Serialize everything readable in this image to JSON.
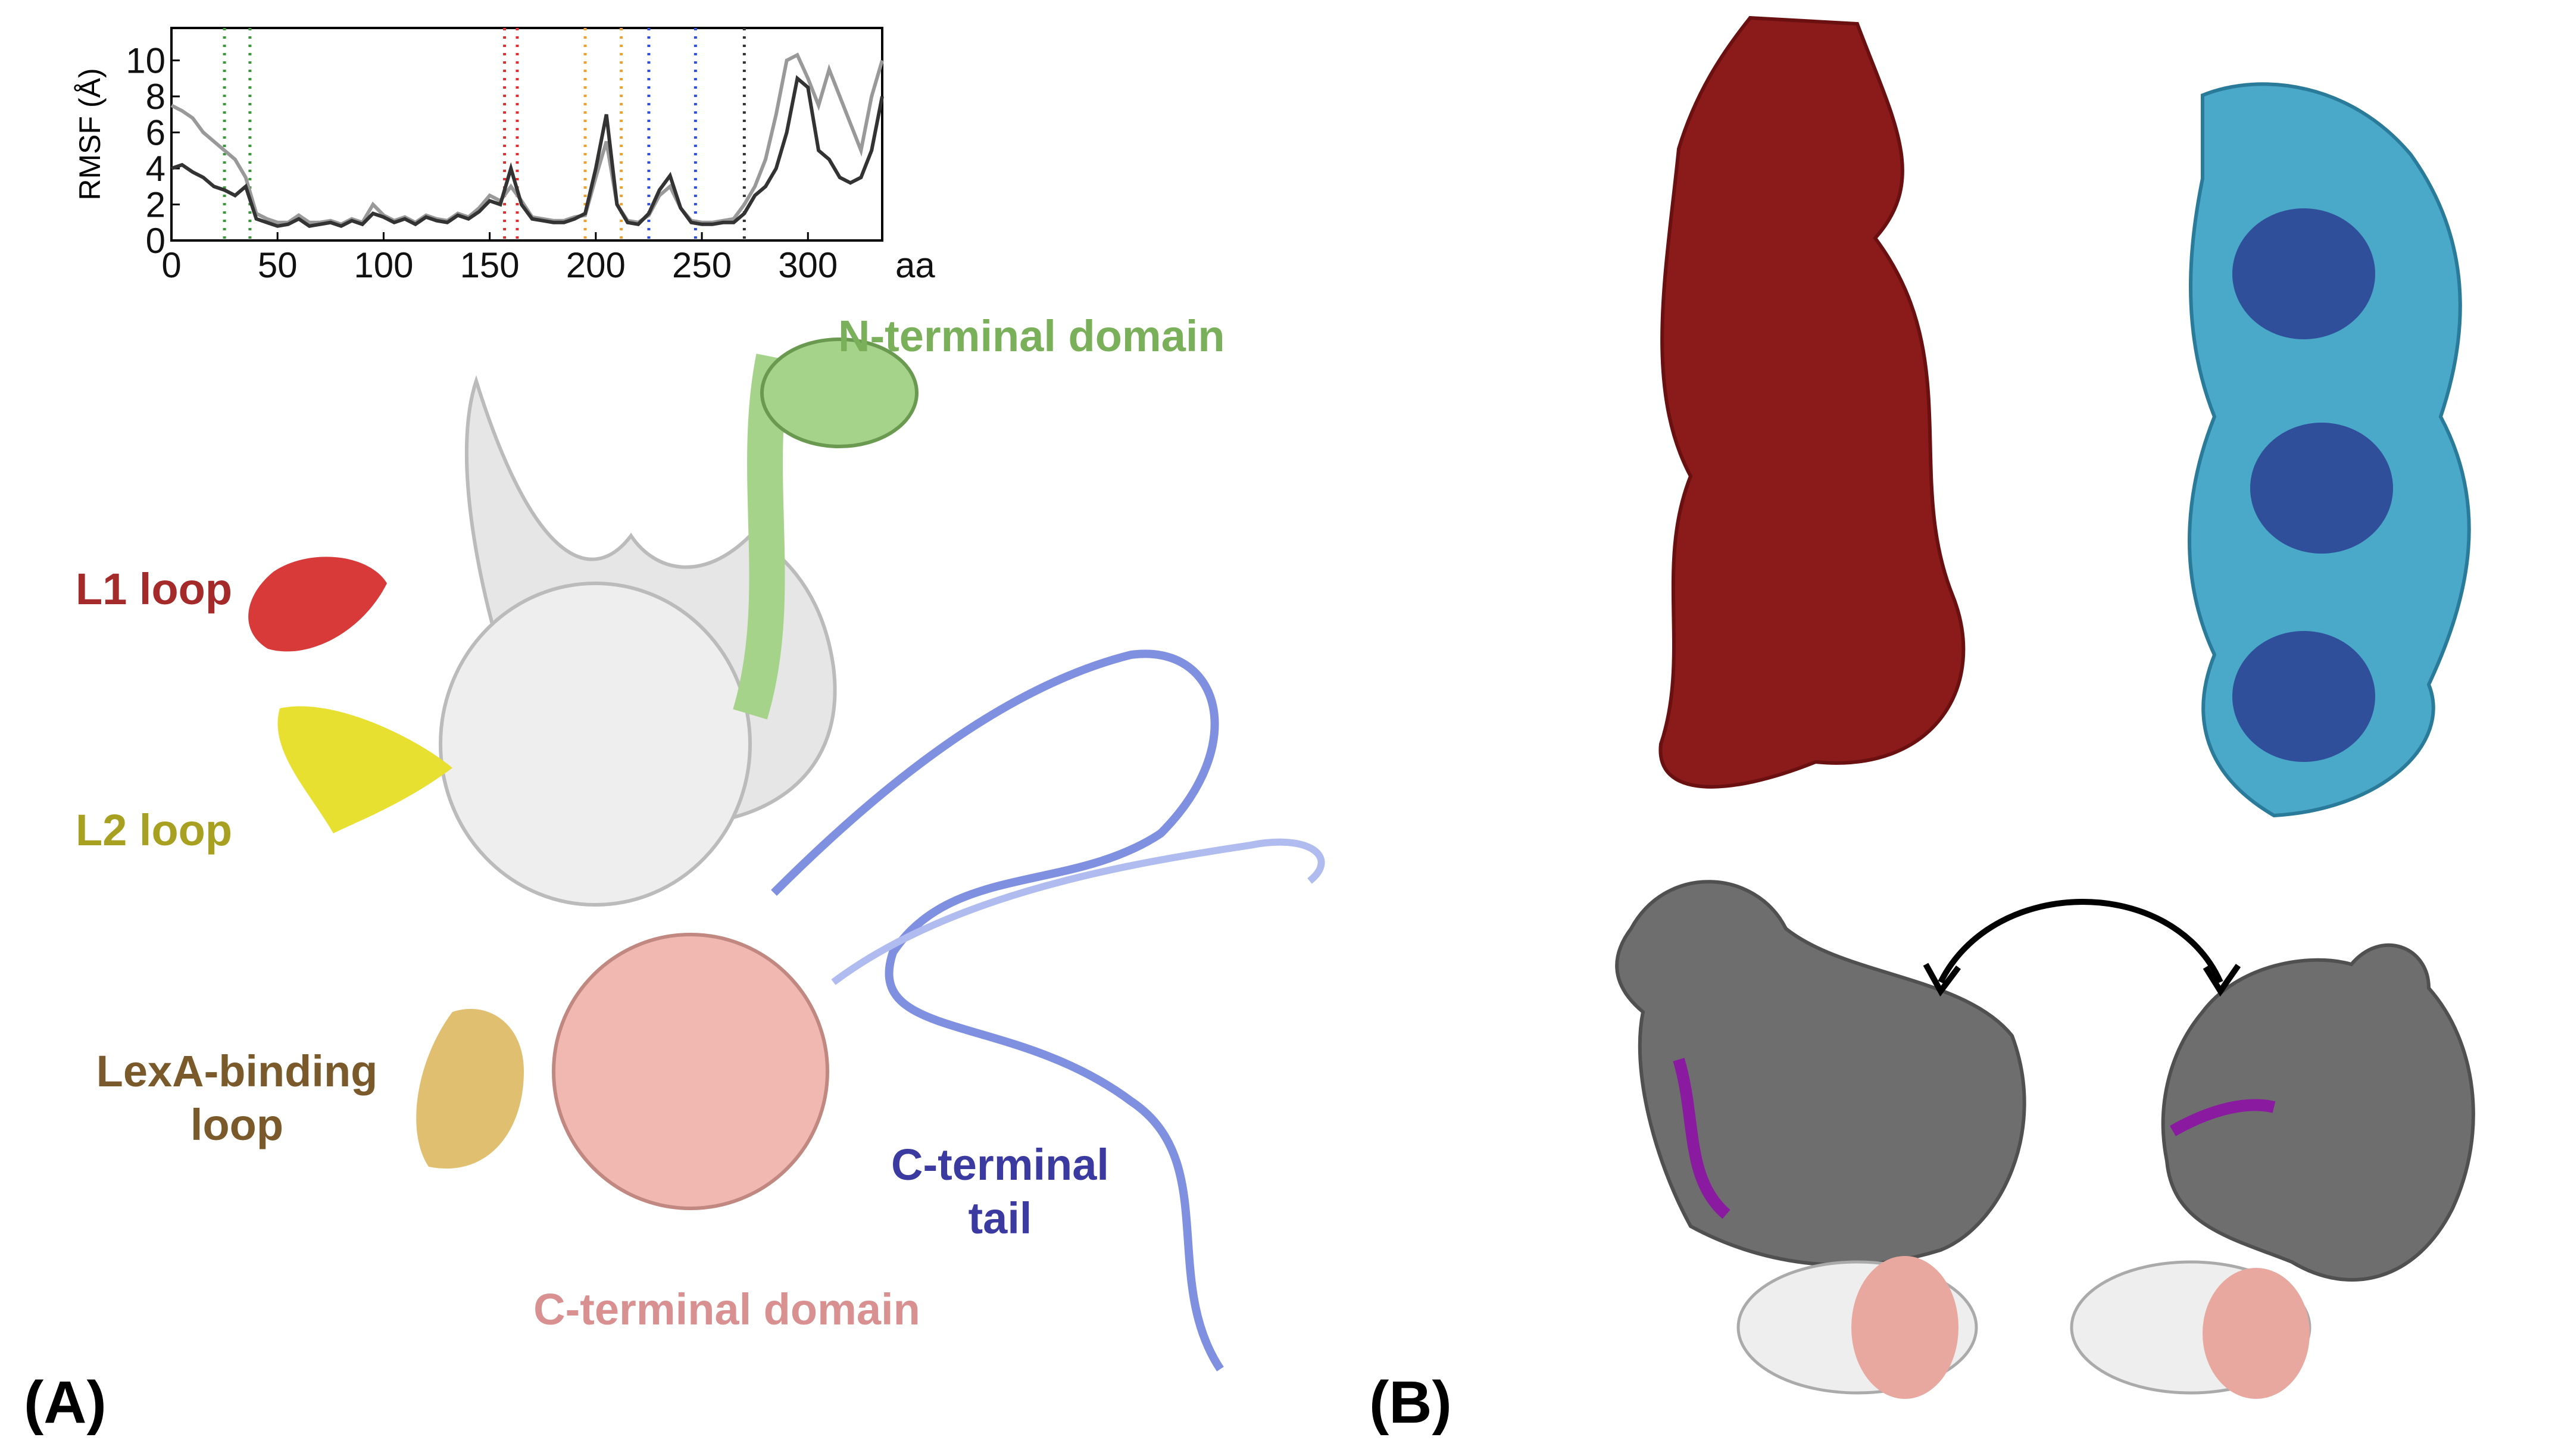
{
  "chart_data": {
    "type": "line",
    "ylabel": "RMSF (Å)",
    "xlabel": "aa",
    "xlim": [
      0,
      335
    ],
    "ylim": [
      0,
      11.8
    ],
    "xticks": [
      0,
      50,
      100,
      150,
      200,
      250,
      300
    ],
    "yticks": [
      0,
      2,
      4,
      6,
      8,
      10
    ],
    "x": [
      0,
      5,
      10,
      15,
      20,
      25,
      30,
      35,
      40,
      45,
      50,
      55,
      60,
      65,
      70,
      75,
      80,
      85,
      90,
      95,
      100,
      105,
      110,
      115,
      120,
      125,
      130,
      135,
      140,
      145,
      150,
      155,
      160,
      165,
      170,
      175,
      180,
      185,
      190,
      195,
      200,
      205,
      210,
      215,
      220,
      225,
      230,
      235,
      240,
      245,
      250,
      255,
      260,
      265,
      270,
      275,
      280,
      285,
      290,
      295,
      300,
      305,
      310,
      315,
      320,
      325,
      330,
      335
    ],
    "series": [
      {
        "color": "#999999",
        "values": [
          7.5,
          7.2,
          6.8,
          6,
          5.5,
          5,
          4.5,
          3.5,
          1.5,
          1.2,
          1,
          1,
          1.4,
          1,
          1,
          1.1,
          0.9,
          1.2,
          1,
          2,
          1.4,
          1.1,
          1.3,
          1,
          1.4,
          1.2,
          1.1,
          1.5,
          1.3,
          1.8,
          2.5,
          2.2,
          3,
          2.2,
          1.3,
          1.2,
          1.1,
          1.1,
          1.3,
          1.4,
          3.5,
          5.5,
          2,
          1.1,
          1,
          1.4,
          2.5,
          3,
          1.8,
          1.1,
          1,
          1,
          1.1,
          1.2,
          2,
          3,
          4.5,
          7,
          10,
          10.3,
          9,
          7.5,
          9.5,
          8,
          6.5,
          5,
          8,
          10
        ]
      },
      {
        "color": "#333333",
        "values": [
          4,
          4.2,
          3.8,
          3.5,
          3,
          2.8,
          2.5,
          3,
          1.2,
          1,
          0.8,
          0.9,
          1.2,
          0.8,
          0.9,
          1,
          0.8,
          1.1,
          0.9,
          1.5,
          1.3,
          1,
          1.2,
          0.9,
          1.3,
          1.1,
          1,
          1.4,
          1.2,
          1.6,
          2.2,
          2,
          4,
          2,
          1.2,
          1.1,
          1,
          1,
          1.2,
          1.5,
          4,
          7,
          2,
          1,
          0.9,
          1.5,
          2.8,
          3.6,
          1.8,
          1,
          0.9,
          0.9,
          1,
          1,
          1.5,
          2.5,
          3,
          4,
          6,
          9,
          8.5,
          5,
          4.5,
          3.5,
          3.2,
          3.5,
          5,
          8
        ]
      }
    ],
    "vlines": [
      {
        "x": 25,
        "color": "#3a9a3a"
      },
      {
        "x": 37,
        "color": "#3a9a3a"
      },
      {
        "x": 157,
        "color": "#e03030"
      },
      {
        "x": 163,
        "color": "#e03030"
      },
      {
        "x": 195,
        "color": "#f0a030"
      },
      {
        "x": 212,
        "color": "#f0a030"
      },
      {
        "x": 225,
        "color": "#3050e0"
      },
      {
        "x": 247,
        "color": "#3050e0"
      },
      {
        "x": 270,
        "color": "#333333"
      }
    ]
  },
  "panel_a": {
    "label": "(A)",
    "n_terminal": "N-terminal domain",
    "l1": "L1 loop",
    "l2": "L2 loop",
    "lexa_1": "LexA-binding",
    "lexa_2": "loop",
    "c_tail_1": "C-terminal",
    "c_tail_2": "tail",
    "c_domain": "C-terminal domain"
  },
  "panel_b": {
    "label": "(B)"
  }
}
